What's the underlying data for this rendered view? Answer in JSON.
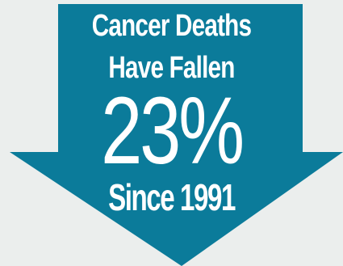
{
  "graphic": {
    "line1": "Cancer Deaths",
    "line2": "Have Fallen",
    "percent": "23%",
    "since": "Since 1991"
  },
  "colors": {
    "background": "#ebeeed",
    "arrow": "#0b7b9a",
    "text": "#ffffff"
  },
  "icons": {
    "arrow": "down-arrow-icon"
  }
}
